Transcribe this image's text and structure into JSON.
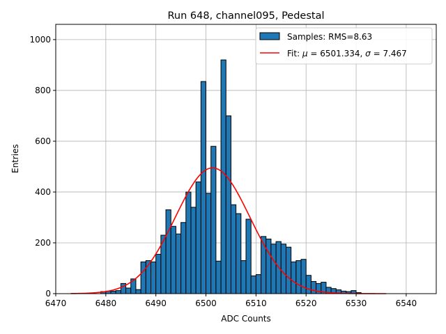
{
  "chart_data": {
    "type": "bar",
    "title": "Run 648, channel095, Pedestal",
    "xlabel": "ADC Counts",
    "ylabel": "Entries",
    "xlim": [
      6470,
      6546
    ],
    "ylim": [
      0,
      1060
    ],
    "xticks": [
      6470,
      6480,
      6490,
      6500,
      6510,
      6520,
      6530,
      6540
    ],
    "yticks": [
      0,
      200,
      400,
      600,
      800,
      1000
    ],
    "grid": true,
    "legend_position": "top-right",
    "colors": {
      "bars": "#1f77b4",
      "bar_edge": "#000000",
      "fit": "#ff0000",
      "grid": "#b0b0b0"
    },
    "histogram": {
      "name": "Samples: RMS=8.63",
      "bin_edges_start": 6479,
      "bin_width": 1,
      "counts": [
        8,
        10,
        10,
        12,
        40,
        22,
        58,
        16,
        125,
        130,
        125,
        155,
        230,
        330,
        265,
        235,
        280,
        400,
        340,
        440,
        835,
        395,
        580,
        128,
        920,
        700,
        350,
        315,
        130,
        293,
        70,
        75,
        225,
        215,
        195,
        205,
        195,
        183,
        125,
        130,
        135,
        72,
        48,
        40,
        45,
        25,
        20,
        15,
        10,
        8,
        12,
        4
      ]
    },
    "fit": {
      "name_prefix": "Fit: ",
      "mu_symbol": "μ",
      "mu_text": " = 6501.334, ",
      "sigma_symbol": "σ",
      "sigma_text": " = 7.467",
      "mu": 6501.334,
      "sigma": 7.467,
      "amplitude": 495,
      "x_range": [
        6473,
        6536
      ]
    }
  }
}
